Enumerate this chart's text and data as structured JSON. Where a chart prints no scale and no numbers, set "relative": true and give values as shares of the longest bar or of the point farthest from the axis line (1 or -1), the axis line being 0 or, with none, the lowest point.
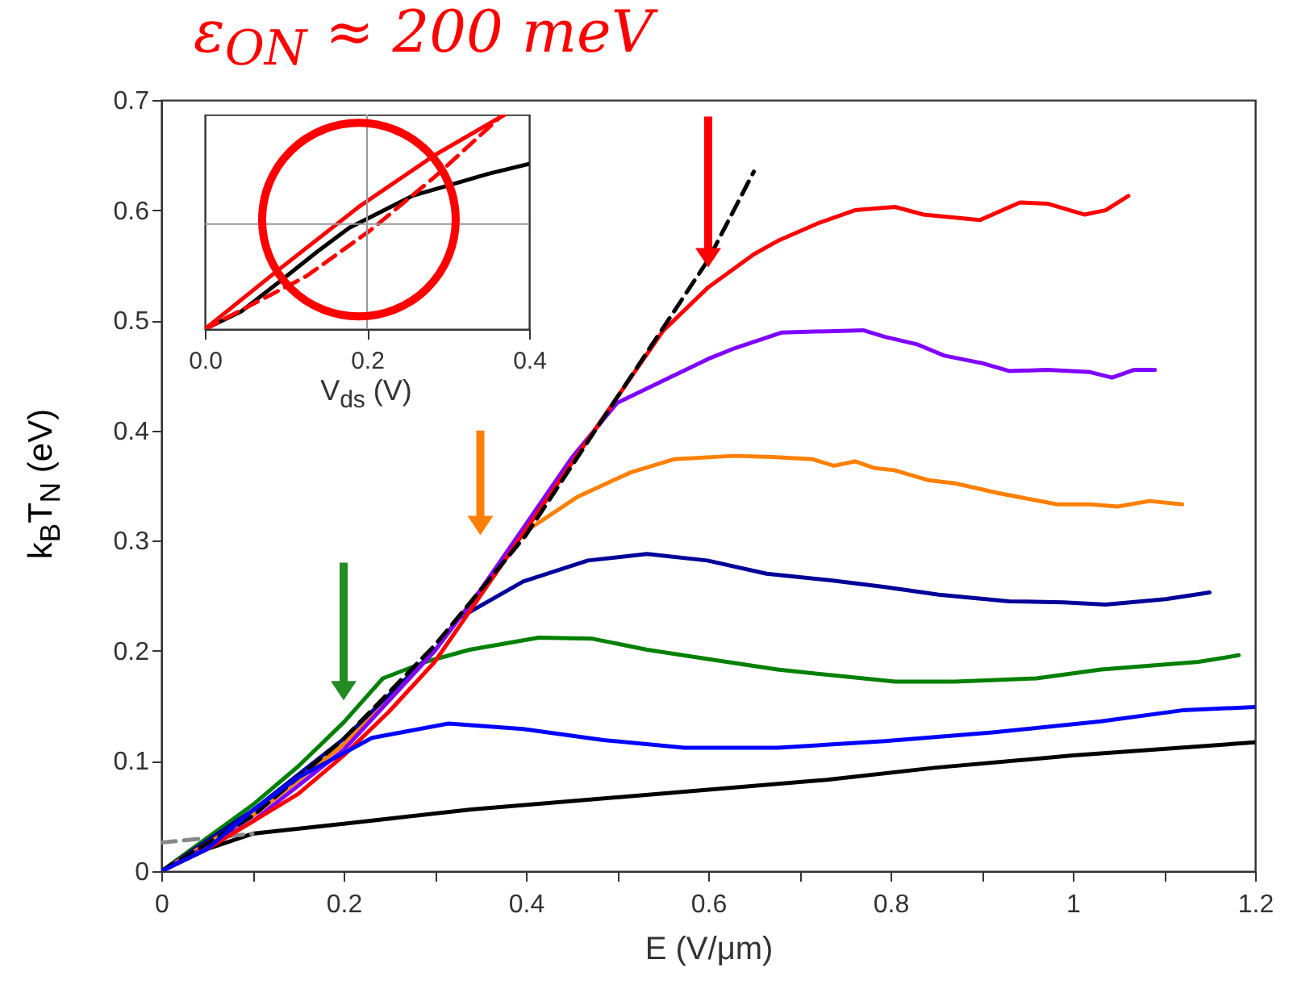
{
  "chart_data": [
    {
      "type": "line",
      "title": "ε$_{ON}$ ≈ 200 meV",
      "xlabel": "E (V/μm)",
      "ylabel": "k$_{B}$T$_{N}$ (eV)",
      "xlim": [
        0,
        1.2
      ],
      "ylim": [
        0,
        0.7
      ],
      "xticks": [
        0,
        {
          "value": 0.1,
          "label": null
        },
        0.2,
        {
          "value": 0.3,
          "label": null
        },
        0.4,
        {
          "value": 0.5,
          "label": null
        },
        0.6,
        {
          "value": 0.7,
          "label": null
        },
        0.8,
        {
          "value": 0.9,
          "label": null
        },
        1,
        {
          "value": 1.1,
          "label": null
        },
        1.2
      ],
      "yticks": [
        0,
        0.1,
        0.2,
        0.3,
        0.4,
        0.5,
        0.6,
        0.7
      ],
      "grid": false,
      "series": [
        {
          "color": "#000000",
          "x": [
            0,
            0.05,
            0.1,
            0.2,
            0.34,
            0.5,
            0.6,
            0.73,
            0.85,
            1.0,
            1.2
          ],
          "values": [
            0,
            0.02,
            0.034,
            0.043,
            0.056,
            0.067,
            0.074,
            0.083,
            0.094,
            0.105,
            0.117
          ]
        },
        {
          "color": "#888888",
          "line_style": "dashed",
          "x": [
            0,
            0.1
          ],
          "values": [
            0.026,
            0.034
          ]
        },
        {
          "color": "#008000",
          "x": [
            0,
            0.1,
            0.15,
            0.2,
            0.243,
            0.29,
            0.338,
            0.414,
            0.473,
            0.533,
            0.604,
            0.676,
            0.805,
            0.871,
            0.96,
            1.031,
            1.138,
            1.182
          ],
          "values": [
            0,
            0.06,
            0.095,
            0.135,
            0.175,
            0.19,
            0.201,
            0.212,
            0.211,
            0.201,
            0.192,
            0.183,
            0.172,
            0.172,
            0.175,
            0.183,
            0.19,
            0.196
          ]
        },
        {
          "color": "#000099",
          "x": [
            0,
            0.1,
            0.2,
            0.25,
            0.3,
            0.325,
            0.397,
            0.468,
            0.533,
            0.599,
            0.664,
            0.735,
            0.794,
            0.853,
            0.93,
            0.99,
            1.036,
            1.102,
            1.15
          ],
          "values": [
            0,
            0.055,
            0.12,
            0.16,
            0.2,
            0.229,
            0.263,
            0.282,
            0.288,
            0.282,
            0.27,
            0.264,
            0.258,
            0.251,
            0.245,
            0.244,
            0.242,
            0.247,
            0.253
          ]
        },
        {
          "color": "#ff8000",
          "x": [
            0,
            0.1,
            0.2,
            0.25,
            0.3,
            0.35,
            0.397,
            0.457,
            0.515,
            0.563,
            0.628,
            0.67,
            0.714,
            0.738,
            0.761,
            0.782,
            0.804,
            0.841,
            0.871,
            0.919,
            0.983,
            1.019,
            1.049,
            1.084,
            1.12
          ],
          "values": [
            0,
            0.05,
            0.115,
            0.155,
            0.2,
            0.255,
            0.307,
            0.34,
            0.362,
            0.374,
            0.377,
            0.376,
            0.374,
            0.368,
            0.372,
            0.366,
            0.364,
            0.355,
            0.352,
            0.343,
            0.333,
            0.333,
            0.331,
            0.336,
            0.333
          ]
        },
        {
          "color": "#8000ff",
          "x": [
            0,
            0.1,
            0.2,
            0.3,
            0.35,
            0.4,
            0.45,
            0.5,
            0.55,
            0.6,
            0.63,
            0.681,
            0.77,
            0.794,
            0.83,
            0.859,
            0.901,
            0.93,
            0.972,
            1.019,
            1.043,
            1.067,
            1.09
          ],
          "values": [
            0,
            0.045,
            0.11,
            0.2,
            0.255,
            0.315,
            0.375,
            0.425,
            0.445,
            0.465,
            0.475,
            0.489,
            0.491,
            0.485,
            0.478,
            0.468,
            0.461,
            0.454,
            0.455,
            0.453,
            0.448,
            0.455,
            0.455
          ]
        },
        {
          "color": "#ff0000",
          "x": [
            0,
            0.05,
            0.1,
            0.15,
            0.2,
            0.25,
            0.3,
            0.35,
            0.4,
            0.45,
            0.5,
            0.55,
            0.6,
            0.65,
            0.676,
            0.72,
            0.761,
            0.805,
            0.836,
            0.898,
            0.942,
            0.972,
            1.013,
            1.036,
            1.061
          ],
          "values": [
            0,
            0.02,
            0.045,
            0.07,
            0.105,
            0.145,
            0.19,
            0.25,
            0.31,
            0.37,
            0.43,
            0.49,
            0.53,
            0.56,
            0.572,
            0.588,
            0.6,
            0.603,
            0.596,
            0.591,
            0.607,
            0.606,
            0.596,
            0.6,
            0.613
          ]
        },
        {
          "color": "#000000",
          "line_style": "dashed",
          "x": [
            0,
            0.1,
            0.2,
            0.3,
            0.4,
            0.5,
            0.6,
            0.65
          ],
          "values": [
            0,
            0.05,
            0.12,
            0.205,
            0.305,
            0.43,
            0.555,
            0.635
          ]
        },
        {
          "color": "#0000ff",
          "x": [
            0,
            0.05,
            0.1,
            0.15,
            0.2,
            0.231,
            0.315,
            0.397,
            0.485,
            0.574,
            0.676,
            0.794,
            0.912,
            1.031,
            1.12,
            1.2
          ],
          "values": [
            0,
            0.02,
            0.055,
            0.085,
            0.107,
            0.121,
            0.134,
            0.129,
            0.119,
            0.112,
            0.112,
            0.118,
            0.126,
            0.136,
            0.146,
            0.149
          ]
        }
      ]
    },
    {
      "type": "line",
      "xlabel": "V$_{ds}$ (V)",
      "relative": true,
      "xlim": [
        0,
        0.4
      ],
      "xticks": [
        {
          "value": 0,
          "label": "0.0"
        },
        {
          "value": 0.2,
          "label": "0.2"
        },
        {
          "value": 0.4,
          "label": "0.4"
        }
      ],
      "tick_labels": "x",
      "ref_lines": [
        {
          "axis": "x",
          "value": 0.2,
          "color": "#999999"
        },
        {
          "axis": "y",
          "value": 0.49,
          "color": "#999999"
        }
      ],
      "series": [
        {
          "color": "#000000",
          "x": [
            0,
            0.045,
            0.092,
            0.138,
            0.178,
            0.211,
            0.257,
            0.297,
            0.35,
            0.4
          ],
          "values": [
            0,
            0.083,
            0.221,
            0.359,
            0.472,
            0.535,
            0.623,
            0.666,
            0.724,
            0.77
          ]
        },
        {
          "color": "#ff0000",
          "x": [
            0,
            0.085,
            0.191,
            0.284,
            0.37
          ],
          "values": [
            0,
            0.259,
            0.573,
            0.812,
            1.0
          ]
        },
        {
          "color": "#ff0000",
          "line_style": "dashed",
          "x": [
            0,
            0.125,
            0.204,
            0.284,
            0.364
          ],
          "values": [
            0,
            0.246,
            0.46,
            0.711,
            0.987
          ]
        }
      ]
    }
  ]
}
